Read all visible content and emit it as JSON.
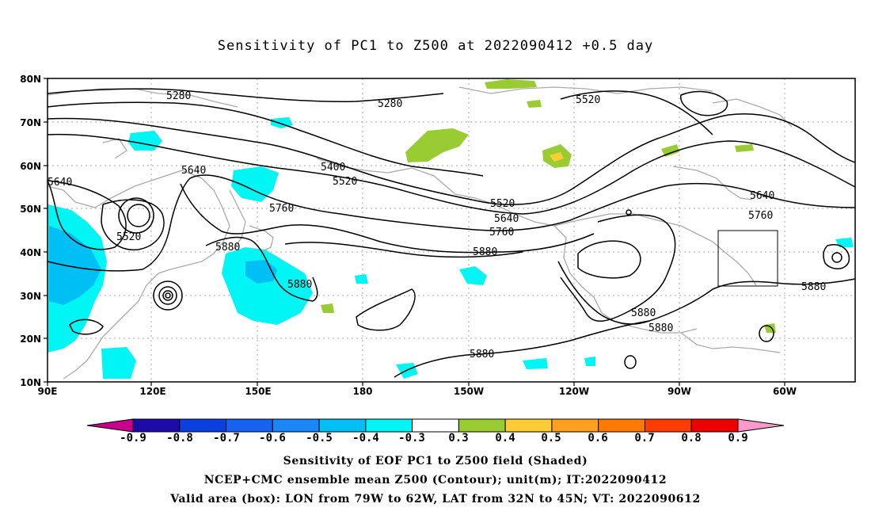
{
  "title": "Sensitivity of PC1 to Z500 at 2022090412 +0.5 day",
  "lat_labels": [
    "80N",
    "70N",
    "60N",
    "50N",
    "40N",
    "30N",
    "20N",
    "10N"
  ],
  "lon_labels": [
    "90E",
    "120E",
    "150E",
    "180",
    "150W",
    "120W",
    "90W",
    "60W"
  ],
  "colorbar": {
    "labels": [
      "-0.9",
      "-0.8",
      "-0.7",
      "-0.6",
      "-0.5",
      "-0.4",
      "-0.3",
      "0.3",
      "0.4",
      "0.5",
      "0.6",
      "0.7",
      "0.8",
      "0.9"
    ],
    "colors": [
      "#1c0aa8",
      "#0a3fe0",
      "#1563f0",
      "#1b86f5",
      "#00bff5",
      "#00f5f5",
      "#ffffff",
      "#99cc33",
      "#ffcc33",
      "#ffa01f",
      "#ff7a00",
      "#ff3d00",
      "#ef0000"
    ],
    "left_tip_color": "#c8008c",
    "right_tip_color": "#ff99cc"
  },
  "contour_labels": [
    {
      "text": "5280",
      "name": "label-5280-a"
    },
    {
      "text": "5280",
      "name": "label-5280-b"
    },
    {
      "text": "5520",
      "name": "label-5520-a"
    },
    {
      "text": "5400",
      "name": "label-5400"
    },
    {
      "text": "5520",
      "name": "label-5520-b"
    },
    {
      "text": "5640",
      "name": "label-5640-a"
    },
    {
      "text": "5640",
      "name": "label-5640-b"
    },
    {
      "text": "5760",
      "name": "label-5760-a"
    },
    {
      "text": "5520",
      "name": "label-5520-c"
    },
    {
      "text": "5880",
      "name": "label-5880-a"
    },
    {
      "text": "5880",
      "name": "label-5880-b"
    },
    {
      "text": "5520",
      "name": "label-5520-d"
    },
    {
      "text": "5640",
      "name": "label-5640-c"
    },
    {
      "text": "5760",
      "name": "label-5760-b"
    },
    {
      "text": "5880",
      "name": "label-5880-c"
    },
    {
      "text": "5640",
      "name": "label-5640-d"
    },
    {
      "text": "5760",
      "name": "label-5760-c"
    },
    {
      "text": "5880",
      "name": "label-5880-d"
    },
    {
      "text": "5880",
      "name": "label-5880-e"
    },
    {
      "text": "5880",
      "name": "label-5880-f"
    },
    {
      "text": "5880",
      "name": "label-5880-g"
    }
  ],
  "captions": [
    "Sensitivity of EOF PC1 to Z500 field (Shaded)",
    "NCEP+CMC ensemble mean Z500 (Contour); unit(m); IT:2022090412",
    "Valid area (box): LON from 79W to 62W, LAT from 32N to 45N; VT: 2022090612"
  ]
}
